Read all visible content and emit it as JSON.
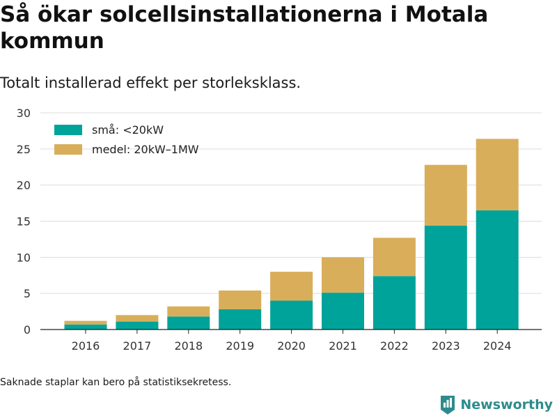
{
  "title": "Så ökar solcellsinstallationerna i Motala kommun",
  "subtitle": "Totalt installerad effekt per storleksklass.",
  "footnote": "Saknade staplar kan bero på statistiksekretess.",
  "brand": {
    "name": "Newsworthy",
    "color": "#2e8b8b",
    "icon": "bar-chart-badge-icon"
  },
  "chart_data": {
    "type": "bar",
    "stacked": true,
    "categories": [
      "2016",
      "2017",
      "2018",
      "2019",
      "2020",
      "2021",
      "2022",
      "2023",
      "2024"
    ],
    "series": [
      {
        "name": "små: <20kW",
        "color": "#00a39a",
        "values": [
          0.7,
          1.1,
          1.8,
          2.8,
          4.0,
          5.1,
          7.4,
          14.4,
          16.5
        ]
      },
      {
        "name": "medel: 20kW–1MW",
        "color": "#d9ae5a",
        "values": [
          0.5,
          0.9,
          1.4,
          2.6,
          4.0,
          4.9,
          5.3,
          8.4,
          9.9
        ]
      }
    ],
    "ylim": [
      0,
      30
    ],
    "yticks": [
      0,
      5,
      10,
      15,
      20,
      25,
      30
    ],
    "grid": true,
    "legend": "top-left"
  }
}
